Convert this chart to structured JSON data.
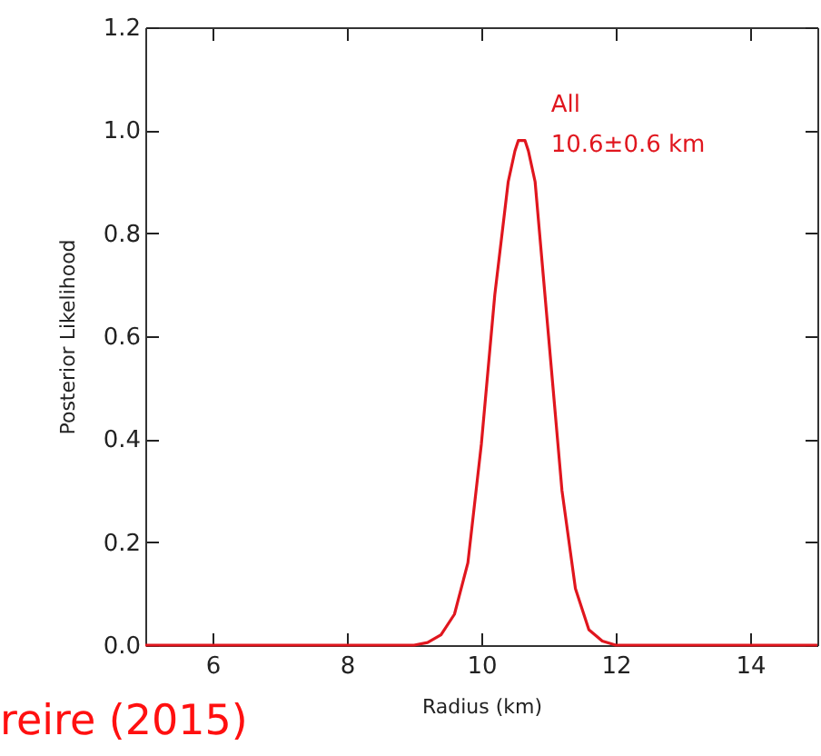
{
  "chart_data": {
    "type": "line",
    "xlabel": "Radius (km)",
    "ylabel": "Posterior Likelihood",
    "x": [
      5,
      6,
      7,
      8,
      9,
      9.2,
      9.4,
      9.6,
      9.8,
      10.0,
      10.2,
      10.4,
      10.5,
      10.55,
      10.65,
      10.7,
      10.8,
      11.0,
      11.2,
      11.4,
      11.6,
      11.8,
      12,
      13,
      14,
      15
    ],
    "series": [
      {
        "name": "All",
        "color": "#e0161e",
        "values": [
          0,
          0,
          0,
          0,
          0,
          0.005,
          0.02,
          0.06,
          0.16,
          0.39,
          0.68,
          0.9,
          0.96,
          0.98,
          0.98,
          0.96,
          0.9,
          0.6,
          0.3,
          0.11,
          0.03,
          0.008,
          0,
          0,
          0,
          0
        ]
      }
    ],
    "annotations": [
      "10.6±0.6 km",
      "reire (2015)"
    ],
    "xlim": [
      5,
      15
    ],
    "xticks": [
      6,
      8,
      10,
      12,
      14
    ],
    "ylim": [
      0,
      1.2
    ],
    "yticks": [
      {
        "value": 0,
        "label": "0.0"
      },
      0.2,
      0.4,
      0.6,
      0.8,
      {
        "value": 1,
        "label": "1.0"
      },
      1.2
    ],
    "grid": false,
    "marker": "none",
    "line_style": "solid"
  }
}
